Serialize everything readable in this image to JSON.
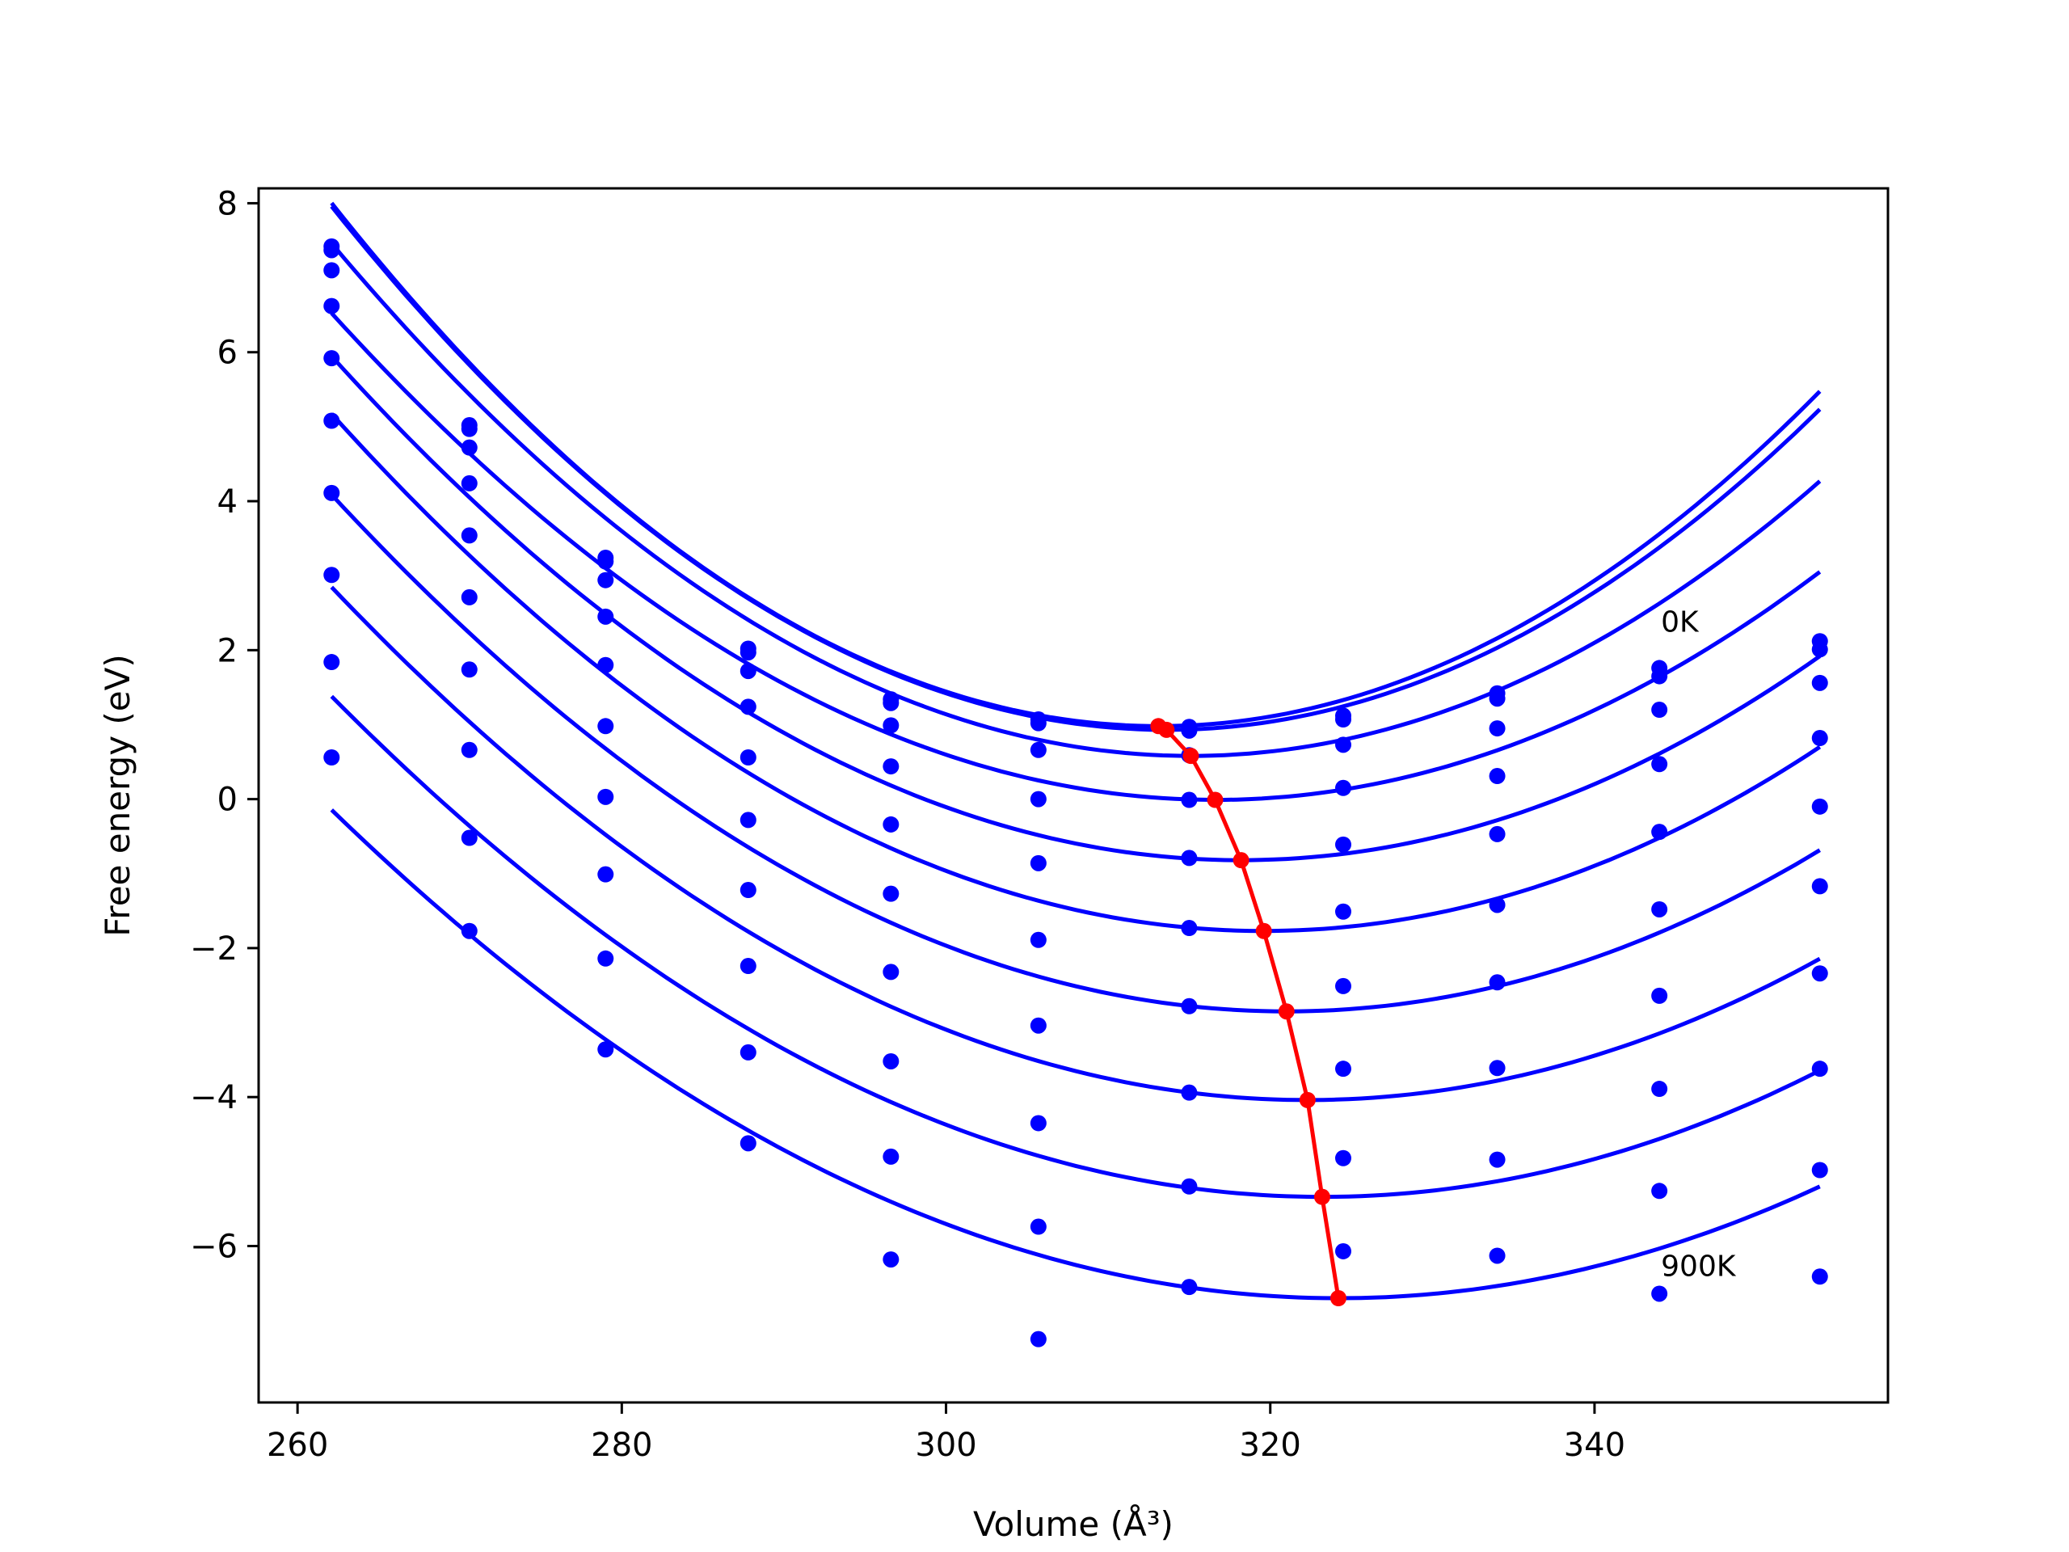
{
  "chart_data": {
    "type": "line",
    "xlabel": "Volume (Å³)",
    "ylabel": "Free energy (eV)",
    "xlim": [
      257.6,
      358.1
    ],
    "ylim": [
      -8.1,
      8.2
    ],
    "xticks": [
      260,
      280,
      300,
      320,
      340
    ],
    "yticks": [
      8,
      6,
      4,
      2,
      0,
      -2,
      -4,
      -6
    ],
    "ytick_labels": [
      "8",
      "6",
      "4",
      "2",
      "0",
      "−2",
      "−4",
      "−6"
    ],
    "grid": false,
    "colors": {
      "curves": "#0000ff",
      "points": "#0000ff",
      "minima": "#ff0000"
    },
    "volumes": [
      262.1,
      270.6,
      279.0,
      287.8,
      296.6,
      305.7,
      315.0,
      324.5,
      334.0,
      344.0,
      353.9
    ],
    "series": [
      {
        "name": "0K",
        "points": [
          7.42,
          5.02,
          3.24,
          2.02,
          1.34,
          1.07,
          0.97,
          1.12,
          1.42,
          1.76,
          2.12
        ],
        "fit": {
          "a": 0.0027,
          "v0": 313.1,
          "e0": 0.98
        }
      },
      {
        "name": "",
        "points": [
          7.37,
          4.97,
          3.19,
          1.97,
          1.29,
          1.02,
          0.92,
          1.07,
          1.35,
          1.65,
          2.01
        ],
        "fit": {
          "a": 0.00265,
          "v0": 313.6,
          "e0": 0.93
        }
      },
      {
        "name": "",
        "points": [
          7.1,
          4.72,
          2.94,
          1.72,
          0.99,
          0.66,
          0.59,
          0.73,
          0.95,
          1.2,
          1.56
        ],
        "fit": {
          "a": 0.00245,
          "v0": 315.1,
          "e0": 0.58
        }
      },
      {
        "name": "",
        "points": [
          6.62,
          4.24,
          2.45,
          1.24,
          0.44,
          0.0,
          -0.01,
          0.15,
          0.31,
          0.47,
          0.82
        ],
        "fit": {
          "a": 0.0022,
          "v0": 316.6,
          "e0": -0.01
        }
      },
      {
        "name": "",
        "points": [
          5.92,
          3.54,
          1.8,
          0.56,
          -0.34,
          -0.86,
          -0.79,
          -0.61,
          -0.47,
          -0.44,
          -0.1
        ],
        "fit": {
          "a": 0.00215,
          "v0": 318.2,
          "e0": -0.82
        }
      },
      {
        "name": "",
        "points": [
          5.08,
          2.71,
          0.98,
          -0.28,
          -1.27,
          -1.89,
          -1.73,
          -1.51,
          -1.42,
          -1.48,
          -1.17
        ],
        "fit": {
          "a": 0.0021,
          "v0": 319.6,
          "e0": -1.77
        }
      },
      {
        "name": "",
        "points": [
          4.11,
          1.74,
          0.03,
          -1.22,
          -2.32,
          -3.04,
          -2.78,
          -2.51,
          -2.46,
          -2.64,
          -2.34
        ],
        "fit": {
          "a": 0.002,
          "v0": 321.0,
          "e0": -2.85
        }
      },
      {
        "name": "",
        "points": [
          3.01,
          0.66,
          -1.01,
          -2.24,
          -3.52,
          -4.35,
          -3.94,
          -3.62,
          -3.61,
          -3.89,
          -3.62
        ],
        "fit": {
          "a": 0.0019,
          "v0": 322.3,
          "e0": -4.04
        }
      },
      {
        "name": "",
        "points": [
          1.84,
          -0.52,
          -2.14,
          -3.4,
          -4.8,
          -5.74,
          -5.2,
          -4.82,
          -4.84,
          -5.26,
          -4.98
        ],
        "fit": {
          "a": 0.0018,
          "v0": 323.2,
          "e0": -5.34
        }
      },
      {
        "name": "900K",
        "points": [
          0.56,
          -1.77,
          -3.36,
          -4.62,
          -6.18,
          -7.25,
          -6.55,
          -6.07,
          -6.13,
          -6.64,
          -6.41
        ],
        "fit": {
          "a": 0.0017,
          "v0": 324.2,
          "e0": -6.7
        }
      }
    ],
    "minima_path": {
      "x": [
        313.1,
        313.6,
        315.1,
        316.6,
        318.2,
        319.6,
        321.0,
        322.3,
        323.2,
        324.2
      ],
      "y": [
        0.98,
        0.93,
        0.58,
        -0.01,
        -0.82,
        -1.77,
        -2.85,
        -4.04,
        -5.34,
        -6.7
      ]
    },
    "annotations": [
      {
        "text": "0K",
        "x": 344.1,
        "y": 2.25
      },
      {
        "text": "900K",
        "x": 344.1,
        "y": -6.4
      }
    ]
  }
}
